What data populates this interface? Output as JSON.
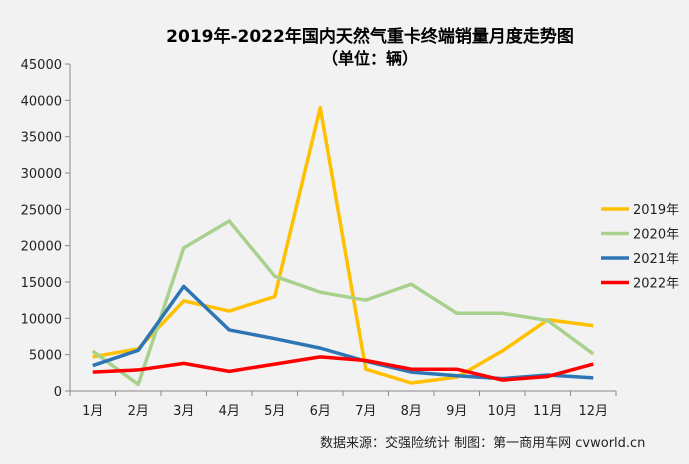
{
  "chart_data": {
    "type": "line",
    "title": "2019年-2022年国内天然气重卡终端销量月度走势图",
    "subtitle": "（单位：辆）",
    "categories": [
      "1月",
      "2月",
      "3月",
      "4月",
      "5月",
      "6月",
      "7月",
      "8月",
      "9月",
      "10月",
      "11月",
      "12月"
    ],
    "ylim": [
      0,
      45000
    ],
    "yticks": [
      0,
      5000,
      10000,
      15000,
      20000,
      25000,
      30000,
      35000,
      40000,
      45000
    ],
    "grid": false,
    "legend_position": "right",
    "series": [
      {
        "name": "2019年",
        "color": "#ffc000",
        "values": [
          4700,
          5800,
          12400,
          11000,
          13000,
          39000,
          3000,
          1100,
          1900,
          5500,
          9800,
          9000
        ]
      },
      {
        "name": "2020年",
        "color": "#a9d18e",
        "values": [
          5500,
          900,
          19700,
          23400,
          15800,
          13600,
          12500,
          14700,
          10700,
          10700,
          9700,
          5100
        ]
      },
      {
        "name": "2021年",
        "color": "#2e75b6",
        "values": [
          3500,
          5600,
          14400,
          8400,
          7200,
          5900,
          4100,
          2600,
          2100,
          1700,
          2200,
          1800
        ]
      },
      {
        "name": "2022年",
        "color": "#ff0000",
        "values": [
          2600,
          2900,
          3800,
          2700,
          3700,
          4700,
          4200,
          3000,
          3000,
          1500,
          2000,
          3700
        ]
      }
    ],
    "footnote": "数据来源：交强险统计   制图：第一商用车网 cvworld.cn"
  },
  "watermark": "第一商用车 cvworld.cn"
}
